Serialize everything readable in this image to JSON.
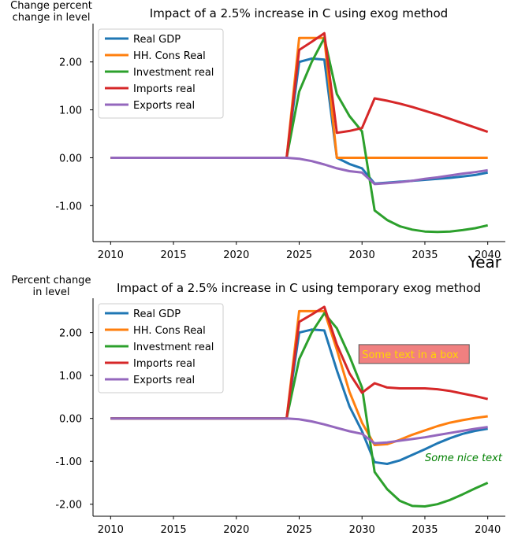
{
  "chart_data": [
    {
      "type": "line",
      "title": "Impact of a 2.5% increase in C using exog method",
      "ylabel": [
        "Change percent",
        "change in level"
      ],
      "xlabel": "Year",
      "xlim": [
        2008.6,
        2041.4
      ],
      "ylim": [
        -1.75,
        2.8
      ],
      "xticks": [
        2010,
        2015,
        2020,
        2025,
        2030,
        2035,
        2040
      ],
      "yticks": [
        -1,
        0,
        1,
        2
      ],
      "ytick_labels": [
        "-1.00",
        "0.00",
        "1.00",
        "2.00"
      ],
      "legend": "top-left",
      "x": [
        2010,
        2011,
        2012,
        2013,
        2014,
        2015,
        2016,
        2017,
        2018,
        2019,
        2020,
        2021,
        2022,
        2023,
        2024,
        2025,
        2026,
        2027,
        2028,
        2029,
        2030,
        2031,
        2032,
        2033,
        2034,
        2035,
        2036,
        2037,
        2038,
        2039,
        2040
      ],
      "series": [
        {
          "name": "Real GDP",
          "color": "#1f77b4",
          "values": [
            0,
            0,
            0,
            0,
            0,
            0,
            0,
            0,
            0,
            0,
            0,
            0,
            0,
            0,
            0,
            2.0,
            2.07,
            2.05,
            0.0,
            -0.13,
            -0.22,
            -0.54,
            -0.52,
            -0.5,
            -0.48,
            -0.46,
            -0.44,
            -0.42,
            -0.39,
            -0.36,
            -0.31
          ]
        },
        {
          "name": "HH. Cons Real",
          "color": "#ff7f0e",
          "values": [
            0,
            0,
            0,
            0,
            0,
            0,
            0,
            0,
            0,
            0,
            0,
            0,
            0,
            0,
            0,
            2.5,
            2.5,
            2.5,
            0,
            0,
            0,
            0,
            0,
            0,
            0,
            0,
            0,
            0,
            0,
            0,
            0
          ]
        },
        {
          "name": "Investment real",
          "color": "#2ca02c",
          "values": [
            0,
            0,
            0,
            0,
            0,
            0,
            0,
            0,
            0,
            0,
            0,
            0,
            0,
            0,
            0,
            1.38,
            2.0,
            2.5,
            1.33,
            0.87,
            0.55,
            -1.1,
            -1.3,
            -1.43,
            -1.5,
            -1.54,
            -1.55,
            -1.54,
            -1.51,
            -1.47,
            -1.41
          ]
        },
        {
          "name": "Imports real",
          "color": "#d62728",
          "values": [
            0,
            0,
            0,
            0,
            0,
            0,
            0,
            0,
            0,
            0,
            0,
            0,
            0,
            0,
            0,
            2.25,
            2.42,
            2.6,
            0.52,
            0.56,
            0.62,
            1.24,
            1.19,
            1.13,
            1.06,
            0.98,
            0.9,
            0.81,
            0.72,
            0.63,
            0.54
          ]
        },
        {
          "name": "Exports real",
          "color": "#9467bd",
          "values": [
            0,
            0,
            0,
            0,
            0,
            0,
            0,
            0,
            0,
            0,
            0,
            0,
            0,
            0,
            0,
            -0.02,
            -0.07,
            -0.14,
            -0.22,
            -0.28,
            -0.31,
            -0.55,
            -0.53,
            -0.51,
            -0.48,
            -0.44,
            -0.41,
            -0.37,
            -0.33,
            -0.3,
            -0.26
          ]
        }
      ]
    },
    {
      "type": "line",
      "title": "Impact of a 2.5% increase in C using temporary exog method",
      "ylabel": [
        "Percent change",
        "in level"
      ],
      "xlim": [
        2008.6,
        2041.4
      ],
      "ylim": [
        -2.28,
        2.8
      ],
      "xticks": [
        2010,
        2015,
        2020,
        2025,
        2030,
        2035,
        2040
      ],
      "yticks": [
        -2,
        -1,
        0,
        1,
        2
      ],
      "ytick_labels": [
        "-2.00",
        "-1.00",
        "0.00",
        "1.00",
        "2.00"
      ],
      "legend": "top-left",
      "annotations": [
        {
          "text": "Some text in a box",
          "x": 2030,
          "y": 1.5,
          "color": "#ffd700",
          "box": "#f08080"
        },
        {
          "text": "Some nice text",
          "x": 2035,
          "y": -0.9,
          "color": "#008000",
          "style": "italic"
        }
      ],
      "x": [
        2010,
        2011,
        2012,
        2013,
        2014,
        2015,
        2016,
        2017,
        2018,
        2019,
        2020,
        2021,
        2022,
        2023,
        2024,
        2025,
        2026,
        2027,
        2028,
        2029,
        2030,
        2031,
        2032,
        2033,
        2034,
        2035,
        2036,
        2037,
        2038,
        2039,
        2040
      ],
      "series": [
        {
          "name": "Real GDP",
          "color": "#1f77b4",
          "values": [
            0,
            0,
            0,
            0,
            0,
            0,
            0,
            0,
            0,
            0,
            0,
            0,
            0,
            0,
            0,
            2.0,
            2.07,
            2.05,
            1.12,
            0.28,
            -0.3,
            -1.02,
            -1.06,
            -0.98,
            -0.85,
            -0.72,
            -0.58,
            -0.46,
            -0.36,
            -0.29,
            -0.24
          ]
        },
        {
          "name": "HH. Cons Real",
          "color": "#ff7f0e",
          "values": [
            0,
            0,
            0,
            0,
            0,
            0,
            0,
            0,
            0,
            0,
            0,
            0,
            0,
            0,
            0,
            2.5,
            2.5,
            2.5,
            1.6,
            0.62,
            -0.1,
            -0.62,
            -0.6,
            -0.5,
            -0.38,
            -0.28,
            -0.18,
            -0.1,
            -0.04,
            0.01,
            0.05
          ]
        },
        {
          "name": "Investment real",
          "color": "#2ca02c",
          "values": [
            0,
            0,
            0,
            0,
            0,
            0,
            0,
            0,
            0,
            0,
            0,
            0,
            0,
            0,
            0,
            1.38,
            2.0,
            2.45,
            2.1,
            1.45,
            0.72,
            -1.25,
            -1.65,
            -1.92,
            -2.04,
            -2.05,
            -2.0,
            -1.9,
            -1.77,
            -1.63,
            -1.5
          ]
        },
        {
          "name": "Imports real",
          "color": "#d62728",
          "values": [
            0,
            0,
            0,
            0,
            0,
            0,
            0,
            0,
            0,
            0,
            0,
            0,
            0,
            0,
            0,
            2.25,
            2.42,
            2.6,
            1.72,
            1.05,
            0.6,
            0.82,
            0.72,
            0.7,
            0.7,
            0.7,
            0.68,
            0.64,
            0.58,
            0.52,
            0.45
          ]
        },
        {
          "name": "Exports real",
          "color": "#9467bd",
          "values": [
            0,
            0,
            0,
            0,
            0,
            0,
            0,
            0,
            0,
            0,
            0,
            0,
            0,
            0,
            0,
            -0.02,
            -0.07,
            -0.14,
            -0.22,
            -0.3,
            -0.36,
            -0.58,
            -0.56,
            -0.52,
            -0.48,
            -0.44,
            -0.39,
            -0.34,
            -0.29,
            -0.24,
            -0.2
          ]
        }
      ]
    }
  ]
}
